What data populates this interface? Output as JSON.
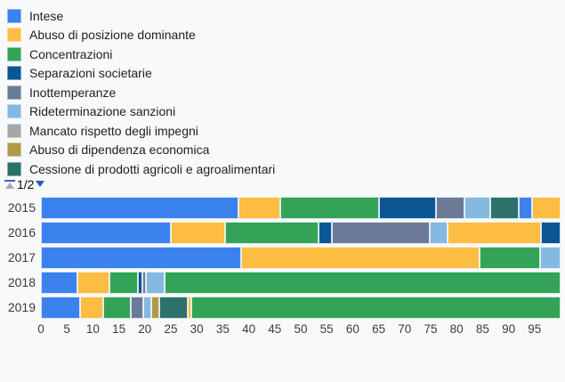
{
  "palette": [
    "#3B82EE",
    "#FCBD42",
    "#33A457",
    "#0A5794",
    "#6B7B97",
    "#84B9E1",
    "#A6A6A6",
    "#B19A47",
    "#2D7169"
  ],
  "ui": {
    "background_color": "#f8f9fa",
    "pagination_active_color": "#3366cc",
    "pagination_disabled_color": "#a6adb6"
  },
  "legend": {
    "items": [
      {
        "label": "Intese",
        "color": 0
      },
      {
        "label": "Abuso di posizione dominante",
        "color": 1
      },
      {
        "label": "Concentrazioni",
        "color": 2
      },
      {
        "label": "Separazioni societarie",
        "color": 3
      },
      {
        "label": "Inottemperanze",
        "color": 4
      },
      {
        "label": "Rideterminazione sanzioni",
        "color": 5
      },
      {
        "label": "Mancato rispetto degli impegni",
        "color": 6
      },
      {
        "label": "Abuso di dipendenza economica",
        "color": 7
      },
      {
        "label": "Cessione di prodotti agricoli e agroalimentari",
        "color": 8
      }
    ],
    "pagination": {
      "label": "1/2",
      "up_disabled": true,
      "down_enabled": true
    }
  },
  "chart_data": {
    "type": "bar",
    "variant": "horizontal-stacked-percentage",
    "title": "",
    "xlabel": "",
    "ylabel": "",
    "grid": false,
    "legend_position": "top-left",
    "categories": [
      "2015",
      "2016",
      "2017",
      "2018",
      "2019"
    ],
    "xlim": [
      0,
      100
    ],
    "x_ticks": [
      0,
      5,
      10,
      15,
      20,
      25,
      30,
      35,
      40,
      45,
      50,
      55,
      60,
      65,
      70,
      75,
      80,
      85,
      90,
      95
    ],
    "bars": [
      {
        "category": "2015",
        "segments": [
          {
            "series": "Intese",
            "color": 0,
            "value": 38
          },
          {
            "series": "Abuso di posizione dominante",
            "color": 1,
            "value": 8
          },
          {
            "series": "Concentrazioni",
            "color": 2,
            "value": 19
          },
          {
            "series": "Separazioni societarie",
            "color": 3,
            "value": 11
          },
          {
            "series": "Inottemperanze",
            "color": 4,
            "value": 5.5
          },
          {
            "series": "Rideterminazione sanzioni",
            "color": 5,
            "value": 5
          },
          {
            "series": "Cessione di prodotti agricoli e agroalimentari",
            "color": 8,
            "value": 5.5
          },
          {
            "series": "",
            "color": 0,
            "value": 2.5
          },
          {
            "series": "",
            "color": 1,
            "value": 5.5
          }
        ]
      },
      {
        "category": "2016",
        "segments": [
          {
            "series": "Intese",
            "color": 0,
            "value": 25
          },
          {
            "series": "Abuso di posizione dominante",
            "color": 1,
            "value": 10.5
          },
          {
            "series": "Concentrazioni",
            "color": 2,
            "value": 18
          },
          {
            "series": "Separazioni societarie",
            "color": 3,
            "value": 2.5
          },
          {
            "series": "Inottemperanze",
            "color": 4,
            "value": 18.75
          },
          {
            "series": "Rideterminazione sanzioni",
            "color": 5,
            "value": 3.5
          },
          {
            "series": "",
            "color": 1,
            "value": 18
          },
          {
            "series": "",
            "color": 3,
            "value": 3.75
          }
        ]
      },
      {
        "category": "2017",
        "segments": [
          {
            "series": "Intese",
            "color": 0,
            "value": 38.5
          },
          {
            "series": "Abuso di posizione dominante",
            "color": 1,
            "value": 46
          },
          {
            "series": "Concentrazioni",
            "color": 2,
            "value": 11.5
          },
          {
            "series": "Rideterminazione sanzioni",
            "color": 5,
            "value": 4
          }
        ]
      },
      {
        "category": "2018",
        "segments": [
          {
            "series": "Intese",
            "color": 0,
            "value": 7
          },
          {
            "series": "Abuso di posizione dominante",
            "color": 1,
            "value": 6.25
          },
          {
            "series": "Concentrazioni",
            "color": 2,
            "value": 5.5
          },
          {
            "series": "Separazioni societarie",
            "color": 3,
            "value": 0.75
          },
          {
            "series": "Inottemperanze",
            "color": 4,
            "value": 0.75
          },
          {
            "series": "Rideterminazione sanzioni",
            "color": 5,
            "value": 3.5
          },
          {
            "series": "",
            "color": 2,
            "value": 76.25
          }
        ]
      },
      {
        "category": "2019",
        "segments": [
          {
            "series": "Intese",
            "color": 0,
            "value": 7.5
          },
          {
            "series": "Abuso di posizione dominante",
            "color": 1,
            "value": 4.5
          },
          {
            "series": "Concentrazioni",
            "color": 2,
            "value": 5.25
          },
          {
            "series": "Inottemperanze",
            "color": 4,
            "value": 2.5
          },
          {
            "series": "Rideterminazione sanzioni",
            "color": 5,
            "value": 1.5
          },
          {
            "series": "Abuso di dipendenza economica",
            "color": 7,
            "value": 1.5
          },
          {
            "series": "Cessione di prodotti agricoli e agroalimentari",
            "color": 8,
            "value": 5.5
          },
          {
            "series": "",
            "color": 1,
            "value": 0.75
          },
          {
            "series": "",
            "color": 2,
            "value": 71
          }
        ]
      }
    ]
  }
}
